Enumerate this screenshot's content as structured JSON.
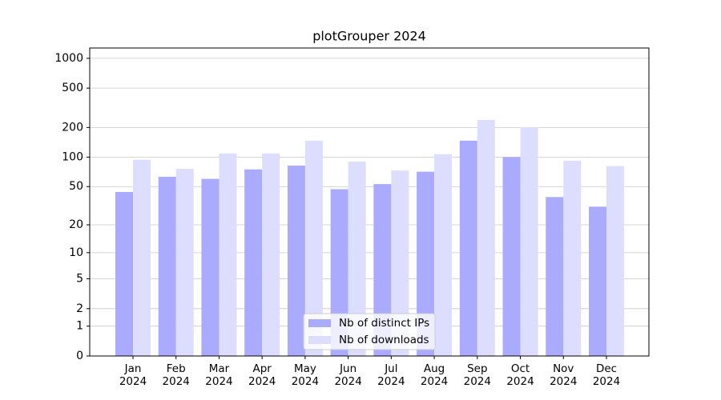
{
  "chart_data": {
    "type": "bar",
    "title": "plotGrouper 2024",
    "categories": [
      "Jan\n2024",
      "Feb\n2024",
      "Mar\n2024",
      "Apr\n2024",
      "May\n2024",
      "Jun\n2024",
      "Jul\n2024",
      "Aug\n2024",
      "Sep\n2024",
      "Oct\n2024",
      "Nov\n2024",
      "Dec\n2024"
    ],
    "series": [
      {
        "name": "Nb of distinct IPs",
        "color": "#aaaaff",
        "values": [
          44,
          63,
          60,
          75,
          82,
          47,
          53,
          71,
          147,
          100,
          39,
          31
        ]
      },
      {
        "name": "Nb of downloads",
        "color": "#ddddff",
        "values": [
          94,
          76,
          109,
          109,
          147,
          90,
          73,
          107,
          238,
          201,
          92,
          81
        ]
      }
    ],
    "yscale": "log1p",
    "ylim": [
      0,
      1270
    ],
    "yticks": [
      0,
      1,
      2,
      5,
      10,
      20,
      50,
      100,
      200,
      500,
      1000
    ],
    "grid": true,
    "legend": "lower center"
  }
}
